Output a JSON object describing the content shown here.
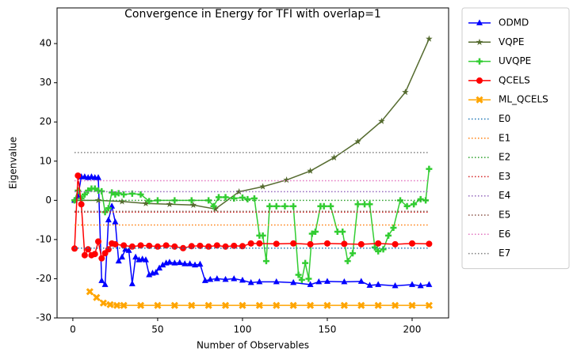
{
  "chart_data": {
    "type": "line",
    "title": "Convergence in Energy for TFI with overlap=1",
    "x_label": "Number of Observables",
    "y_label": "Eigenvalue",
    "xlim": [
      -9.3,
      221.5
    ],
    "ylim": [
      -30,
      49.1
    ],
    "xticks": [
      0,
      50,
      100,
      150,
      200
    ],
    "yticks": [
      -30,
      -20,
      -10,
      0,
      10,
      20,
      30,
      40
    ],
    "legend": "outside-right",
    "series": [
      {
        "name": "ODMD",
        "color": "#0000ff",
        "marker": "triangle",
        "style": "solid",
        "x": [
          1,
          3,
          5,
          7,
          9,
          11,
          13,
          15,
          17,
          19,
          21,
          23,
          25,
          27,
          29,
          31,
          33,
          35,
          37,
          39,
          41,
          43,
          45,
          47,
          49,
          51,
          53,
          55,
          57,
          60,
          63,
          66,
          69,
          72,
          75,
          78,
          81,
          85,
          90,
          95,
          100,
          105,
          110,
          120,
          130,
          140,
          145,
          150,
          160,
          170,
          175,
          180,
          190,
          200,
          205,
          210
        ],
        "values": [
          0,
          1,
          6,
          6,
          5.8,
          6,
          5.8,
          5.8,
          -20.5,
          -21.5,
          -5,
          -1.5,
          -5.5,
          -15.5,
          -14.5,
          -12.5,
          -12.8,
          -21.3,
          -14.5,
          -15.2,
          -15,
          -15.2,
          -19,
          -18.6,
          -18.4,
          -17.3,
          -16.5,
          -16,
          -15.8,
          -16,
          -15.9,
          -16.2,
          -16.2,
          -16.5,
          -16.3,
          -20.5,
          -20.2,
          -20,
          -20.2,
          -20,
          -20.4,
          -21,
          -20.8,
          -20.8,
          -21,
          -21.5,
          -20.8,
          -20.7,
          -20.8,
          -20.7,
          -21.7,
          -21.5,
          -21.8,
          -21.5,
          -21.8,
          -21.5
        ]
      },
      {
        "name": "VQPE",
        "color": "#556b2f",
        "marker": "star",
        "style": "solid",
        "x": [
          1,
          15,
          29,
          43,
          57,
          71,
          84,
          98,
          112,
          126,
          140,
          154,
          168,
          182,
          196,
          210
        ],
        "values": [
          0,
          0,
          -0.3,
          -0.8,
          -1,
          -1.2,
          -2.2,
          2.2,
          3.5,
          5.2,
          7.5,
          10.9,
          15,
          20.2,
          27.6,
          41.2
        ]
      },
      {
        "name": "UVQPE",
        "color": "#32cd32",
        "marker": "plus",
        "style": "solid",
        "x": [
          1,
          3,
          5,
          7,
          9,
          11,
          13,
          15,
          17,
          19,
          21,
          23,
          25,
          27,
          30,
          35,
          40,
          45,
          50,
          60,
          70,
          80,
          83,
          86,
          90,
          95,
          100,
          103,
          107,
          110,
          112,
          114,
          116,
          120,
          125,
          130,
          133,
          135,
          137,
          139,
          141,
          143,
          146,
          148,
          152,
          156,
          159,
          162,
          165,
          168,
          172,
          175,
          178,
          180,
          183,
          186,
          189,
          193,
          197,
          201,
          205,
          208,
          210
        ],
        "values": [
          0,
          2.5,
          0.5,
          1.5,
          2.5,
          3,
          3,
          2.5,
          2.3,
          -3,
          -2,
          2,
          1.5,
          1.8,
          1.5,
          1.7,
          1.5,
          -0.2,
          0,
          0,
          0,
          0,
          -1.5,
          0.8,
          0.8,
          0.5,
          0.7,
          0.3,
          0.5,
          -9,
          -9,
          -15.5,
          -1.5,
          -1.5,
          -1.5,
          -1.5,
          -19,
          -20.3,
          -16,
          -20,
          -8.5,
          -8,
          -1.5,
          -1.5,
          -1.5,
          -8,
          -8,
          -15.5,
          -13.5,
          -1,
          -1,
          -1,
          -12,
          -13,
          -12.5,
          -9,
          -7,
          0,
          -1.5,
          -1,
          0.3,
          0,
          8
        ]
      },
      {
        "name": "QCELS",
        "color": "#ff0000",
        "marker": "circle",
        "style": "solid",
        "x": [
          1,
          3,
          5,
          7,
          9,
          11,
          13,
          15,
          17,
          19,
          21,
          23,
          25,
          30,
          35,
          40,
          45,
          50,
          55,
          60,
          65,
          70,
          75,
          80,
          85,
          90,
          95,
          100,
          105,
          110,
          120,
          130,
          140,
          150,
          160,
          170,
          180,
          190,
          200,
          210
        ],
        "values": [
          -12.3,
          6.3,
          -1,
          -14,
          -12.5,
          -14,
          -13.7,
          -10.5,
          -14.8,
          -13.5,
          -12.5,
          -11,
          -11.2,
          -11.5,
          -11.8,
          -11.5,
          -11.6,
          -11.8,
          -11.5,
          -11.8,
          -12.2,
          -11.7,
          -11.6,
          -11.8,
          -11.5,
          -11.8,
          -11.6,
          -11.7,
          -11,
          -11,
          -11.1,
          -11,
          -11.2,
          -11,
          -11.1,
          -11.2,
          -11,
          -11.2,
          -11,
          -11.1
        ]
      },
      {
        "name": "ML_QCELS",
        "color": "#ffa500",
        "marker": "x",
        "style": "solid",
        "x": [
          10,
          14,
          18,
          22,
          26,
          30,
          40,
          50,
          60,
          70,
          80,
          90,
          100,
          110,
          120,
          130,
          140,
          150,
          160,
          170,
          180,
          190,
          200,
          210
        ],
        "values": [
          -23.3,
          -24.8,
          -26.2,
          -26.6,
          -26.8,
          -26.8,
          -26.8,
          -26.8,
          -26.8,
          -26.8,
          -26.8,
          -26.8,
          -26.8,
          -26.8,
          -26.8,
          -26.8,
          -26.8,
          -26.8,
          -26.8,
          -26.8,
          -26.8,
          -26.8,
          -26.8,
          -26.8
        ]
      },
      {
        "name": "E0",
        "color": "#1f77b4",
        "style": "dotted",
        "x": [
          1,
          210
        ],
        "values": [
          -12.2,
          -12.2
        ]
      },
      {
        "name": "E1",
        "color": "#ff7f0e",
        "style": "dotted",
        "x": [
          1,
          210
        ],
        "values": [
          -6.3,
          -6.3
        ]
      },
      {
        "name": "E2",
        "color": "#2ca02c",
        "style": "dotted",
        "x": [
          1,
          210
        ],
        "values": [
          0,
          0
        ]
      },
      {
        "name": "E3",
        "color": "#d62728",
        "style": "dotted",
        "x": [
          1,
          210
        ],
        "values": [
          -3,
          -3
        ]
      },
      {
        "name": "E4",
        "color": "#9467bd",
        "style": "dotted",
        "x": [
          1,
          210
        ],
        "values": [
          2.2,
          2.2
        ]
      },
      {
        "name": "E5",
        "color": "#8c564b",
        "style": "dotted",
        "x": [
          1,
          210
        ],
        "values": [
          -2.8,
          -2.8
        ]
      },
      {
        "name": "E6",
        "color": "#e377c2",
        "style": "dotted",
        "x": [
          1,
          210
        ],
        "values": [
          5,
          5
        ]
      },
      {
        "name": "E7",
        "color": "#7f7f7f",
        "style": "dotted",
        "x": [
          1,
          210
        ],
        "values": [
          12.2,
          12.2
        ]
      }
    ]
  }
}
